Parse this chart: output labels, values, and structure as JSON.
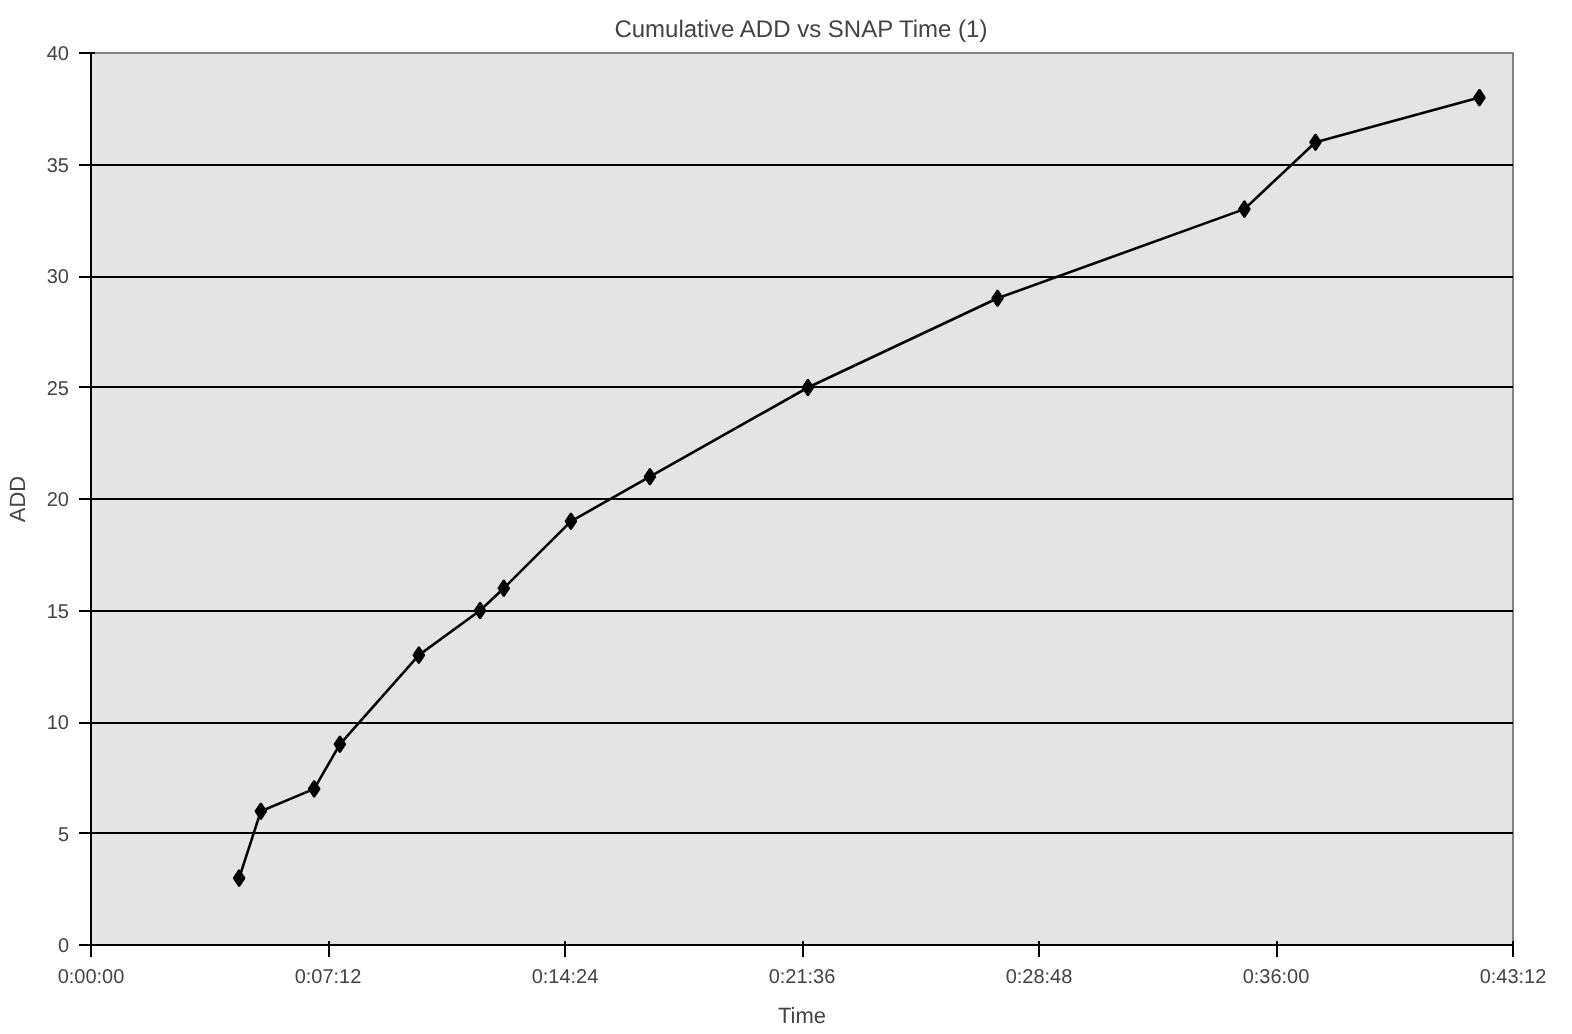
{
  "chart_data": {
    "type": "line",
    "title": "Cumulative ADD vs SNAP Time (1)",
    "xlabel": "Time",
    "ylabel": "ADD",
    "x": [
      0.075,
      0.086,
      0.113,
      0.126,
      0.166,
      0.197,
      0.209,
      0.243,
      0.283,
      0.363,
      0.459,
      0.584,
      0.62,
      0.703
    ],
    "series": [
      {
        "color": "#000000",
        "values": [
          3,
          6,
          7,
          9,
          13,
          15,
          16,
          19,
          21,
          25,
          29,
          33,
          36,
          38
        ]
      }
    ],
    "xlim": [
      0,
      0.72
    ],
    "xticks": [
      {
        "value": 0,
        "label": "0:00:00"
      },
      {
        "value": 0.12,
        "label": "0:07:12"
      },
      {
        "value": 0.24,
        "label": "0:14:24"
      },
      {
        "value": 0.36,
        "label": "0:21:36"
      },
      {
        "value": 0.48,
        "label": "0:28:48"
      },
      {
        "value": 0.6,
        "label": "0:36:00"
      },
      {
        "value": 0.72,
        "label": "0:43:12"
      }
    ],
    "ylim": [
      0,
      40
    ],
    "yticks": [
      0,
      5,
      10,
      15,
      20,
      25,
      30,
      35,
      40
    ],
    "grid": "y",
    "marker": "diamond",
    "line_style": "solid"
  }
}
